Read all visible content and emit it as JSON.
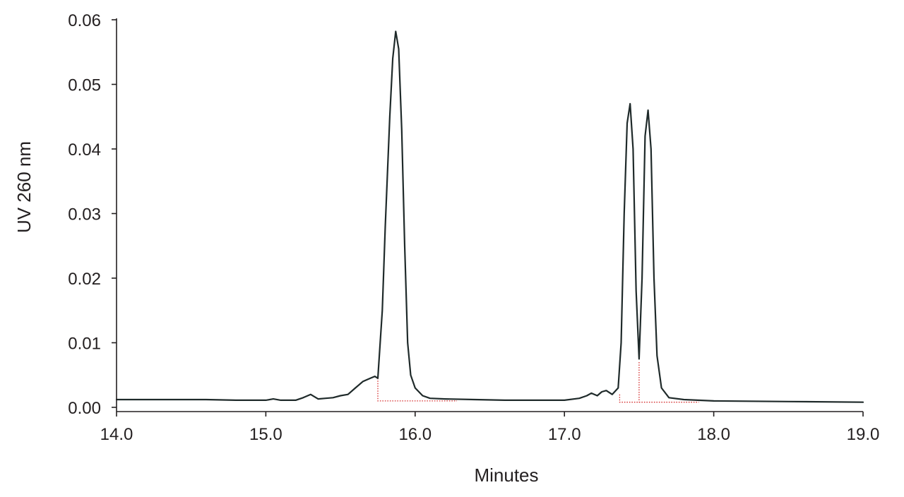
{
  "chart_data": {
    "type": "line",
    "title": "",
    "xlabel": "Minutes",
    "ylabel": "UV 260 nm",
    "xlim": [
      14.0,
      19.0
    ],
    "ylim": [
      0.0,
      0.06
    ],
    "x_ticks": [
      "14.0",
      "15.0",
      "16.0",
      "17.0",
      "18.0",
      "19.0"
    ],
    "y_ticks": [
      "0.00",
      "0.01",
      "0.02",
      "0.03",
      "0.04",
      "0.05",
      "0.06"
    ],
    "grid": false,
    "legend": "none",
    "colors": {
      "trace": "#1f2a2a",
      "integration": "#d42a2a",
      "axis": "#231f20"
    },
    "series": [
      {
        "x": [
          14.0,
          14.2,
          14.4,
          14.6,
          14.8,
          15.0,
          15.05,
          15.1,
          15.2,
          15.25,
          15.3,
          15.35,
          15.4,
          15.45,
          15.5,
          15.55,
          15.6,
          15.65,
          15.7,
          15.73,
          15.75,
          15.78,
          15.8,
          15.83,
          15.85,
          15.87,
          15.89,
          15.91,
          15.93,
          15.95,
          15.97,
          16.0,
          16.05,
          16.1,
          16.2,
          16.4,
          16.6,
          16.8,
          17.0,
          17.1,
          17.15,
          17.18,
          17.22,
          17.25,
          17.28,
          17.32,
          17.36,
          17.38,
          17.4,
          17.42,
          17.44,
          17.46,
          17.48,
          17.5,
          17.52,
          17.54,
          17.56,
          17.58,
          17.6,
          17.62,
          17.65,
          17.7,
          17.8,
          18.0,
          18.5,
          19.0
        ],
        "y": [
          0.0012,
          0.0012,
          0.0012,
          0.0012,
          0.0011,
          0.0011,
          0.0013,
          0.0011,
          0.0011,
          0.0015,
          0.002,
          0.0013,
          0.0014,
          0.0015,
          0.0018,
          0.002,
          0.003,
          0.004,
          0.0045,
          0.0048,
          0.0045,
          0.015,
          0.028,
          0.045,
          0.054,
          0.0582,
          0.0555,
          0.043,
          0.025,
          0.01,
          0.005,
          0.003,
          0.0018,
          0.0014,
          0.0013,
          0.0012,
          0.0011,
          0.0011,
          0.0011,
          0.0014,
          0.0018,
          0.0022,
          0.0018,
          0.0024,
          0.0026,
          0.002,
          0.003,
          0.01,
          0.03,
          0.044,
          0.047,
          0.04,
          0.018,
          0.0075,
          0.02,
          0.042,
          0.046,
          0.04,
          0.02,
          0.008,
          0.003,
          0.0015,
          0.0012,
          0.001,
          0.0009,
          0.0008
        ]
      }
    ],
    "integration_lines": [
      {
        "points": [
          [
            15.75,
            0.0045
          ],
          [
            15.75,
            0.001
          ],
          [
            16.28,
            0.001
          ]
        ]
      },
      {
        "points": [
          [
            17.37,
            0.002
          ],
          [
            17.37,
            0.0008
          ],
          [
            17.9,
            0.0008
          ]
        ]
      },
      {
        "points": [
          [
            17.5,
            0.007
          ],
          [
            17.5,
            0.0008
          ]
        ]
      }
    ]
  }
}
